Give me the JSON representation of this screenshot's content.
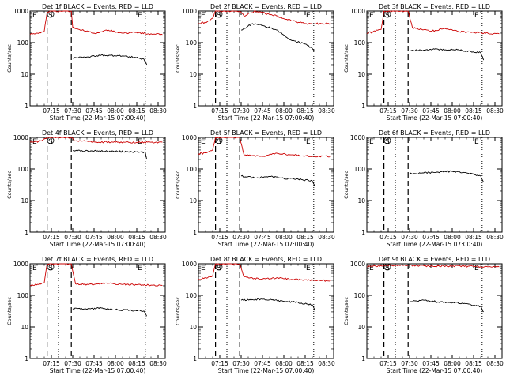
{
  "chart_data": [
    {
      "type": "line",
      "title": "Det 1f BLACK = Events, RED = LLD",
      "ylabel": "Counts/sec",
      "xlabel": "Start Time (22-Mar-15 07:00:40)",
      "xticks": [
        "07:15",
        "07:30",
        "07:45",
        "08:00",
        "08:15",
        "08:30"
      ],
      "yticks": [
        "1",
        "10",
        "100",
        "1000"
      ],
      "ylim": [
        1,
        1000
      ],
      "yscale": "log",
      "markers": [
        "E",
        "S",
        "E"
      ],
      "vlines_dashed": [
        "07:12",
        "07:29"
      ],
      "vlines_dotted": [
        "08:21"
      ],
      "series": [
        {
          "name": "RED = LLD",
          "color": "#cc0000",
          "x": [
            "07:00",
            "07:05",
            "07:10",
            "07:12",
            "07:14",
            "07:29",
            "07:30",
            "07:45",
            "07:55",
            "08:05",
            "08:15",
            "08:25",
            "08:33"
          ],
          "y": [
            180,
            200,
            230,
            900,
            1000,
            1000,
            300,
            200,
            250,
            200,
            210,
            190,
            180
          ]
        },
        {
          "name": "BLACK = Events",
          "color": "#000000",
          "x": [
            "07:30",
            "07:40",
            "07:50",
            "08:00",
            "08:10",
            "08:20",
            "08:22"
          ],
          "y": [
            32,
            35,
            40,
            38,
            36,
            30,
            20
          ]
        }
      ]
    },
    {
      "type": "line",
      "title": "Det 2f BLACK = Events, RED = LLD",
      "ylabel": "Counts/sec",
      "xlabel": "Start Time (22-Mar-15 07:00:40)",
      "xticks": [
        "07:15",
        "07:30",
        "07:45",
        "08:00",
        "08:15",
        "08:30"
      ],
      "yticks": [
        "1",
        "10",
        "100",
        "1000"
      ],
      "ylim": [
        1,
        1000
      ],
      "yscale": "log",
      "markers": [
        "E",
        "S",
        "E"
      ],
      "vlines_dashed": [
        "07:12",
        "07:29"
      ],
      "vlines_dotted": [
        "07:20",
        "08:21"
      ],
      "series": [
        {
          "name": "RED = LLD",
          "color": "#cc0000",
          "x": [
            "07:00",
            "07:06",
            "07:10",
            "07:12",
            "07:14",
            "07:29",
            "07:32",
            "07:40",
            "07:55",
            "08:05",
            "08:15",
            "08:25",
            "08:33"
          ],
          "y": [
            400,
            450,
            600,
            1000,
            1000,
            1000,
            700,
            1000,
            700,
            500,
            400,
            400,
            400
          ]
        },
        {
          "name": "BLACK = Events",
          "color": "#000000",
          "x": [
            "07:30",
            "07:38",
            "07:45",
            "07:55",
            "08:05",
            "08:15",
            "08:22"
          ],
          "y": [
            250,
            400,
            350,
            250,
            120,
            90,
            55
          ]
        }
      ]
    },
    {
      "type": "line",
      "title": "Det 3f BLACK = Events, RED = LLD",
      "ylabel": "Counts/sec",
      "xlabel": "Start Time (22-Mar-15 07:00:40)",
      "xticks": [
        "07:15",
        "07:30",
        "07:45",
        "08:00",
        "08:15",
        "08:30"
      ],
      "yticks": [
        "1",
        "10",
        "100",
        "1000"
      ],
      "ylim": [
        1,
        1000
      ],
      "yscale": "log",
      "markers": [
        "E",
        "S",
        "E"
      ],
      "vlines_dashed": [
        "07:12",
        "07:29"
      ],
      "vlines_dotted": [
        "07:20",
        "08:21"
      ],
      "series": [
        {
          "name": "RED = LLD",
          "color": "#cc0000",
          "x": [
            "07:00",
            "07:06",
            "07:10",
            "07:12",
            "07:14",
            "07:29",
            "07:32",
            "07:45",
            "07:55",
            "08:05",
            "08:15",
            "08:25",
            "08:33"
          ],
          "y": [
            200,
            230,
            260,
            1000,
            1000,
            1000,
            300,
            230,
            280,
            220,
            210,
            200,
            190
          ]
        },
        {
          "name": "BLACK = Events",
          "color": "#000000",
          "x": [
            "07:30",
            "07:40",
            "07:50",
            "08:00",
            "08:10",
            "08:20",
            "08:22"
          ],
          "y": [
            55,
            58,
            62,
            60,
            55,
            48,
            28
          ]
        }
      ]
    },
    {
      "type": "line",
      "title": "Det 4f BLACK = Events, RED = LLD",
      "ylabel": "Counts/sec",
      "xlabel": "Start Time (22-Mar-15 07:00:40)",
      "xticks": [
        "07:15",
        "07:30",
        "07:45",
        "08:00",
        "08:15",
        "08:30"
      ],
      "yticks": [
        "1",
        "10",
        "100",
        "1000"
      ],
      "ylim": [
        1,
        1000
      ],
      "yscale": "log",
      "markers": [
        "E",
        "S",
        "E"
      ],
      "vlines_dashed": [
        "07:12",
        "07:29"
      ],
      "vlines_dotted": [
        "08:21"
      ],
      "series": [
        {
          "name": "RED = LLD",
          "color": "#cc0000",
          "x": [
            "07:00",
            "07:06",
            "07:10",
            "07:12",
            "07:14",
            "07:29",
            "07:31",
            "07:45",
            "08:00",
            "08:15",
            "08:25",
            "08:33"
          ],
          "y": [
            700,
            750,
            900,
            1000,
            1000,
            1000,
            800,
            720,
            700,
            700,
            700,
            700
          ]
        },
        {
          "name": "BLACK = Events",
          "color": "#000000",
          "x": [
            "07:30",
            "07:45",
            "08:00",
            "08:15",
            "08:21",
            "08:22"
          ],
          "y": [
            380,
            370,
            360,
            350,
            340,
            200
          ]
        }
      ]
    },
    {
      "type": "line",
      "title": "Det 5f BLACK = Events, RED = LLD",
      "ylabel": "Counts/sec",
      "xlabel": "Start Time (22-Mar-15 07:00:40)",
      "xticks": [
        "07:15",
        "07:30",
        "07:45",
        "08:00",
        "08:15",
        "08:30"
      ],
      "yticks": [
        "1",
        "10",
        "100",
        "1000"
      ],
      "ylim": [
        1,
        1000
      ],
      "yscale": "log",
      "markers": [
        "E",
        "S",
        "E"
      ],
      "vlines_dashed": [
        "07:12",
        "07:29"
      ],
      "vlines_dotted": [
        "07:20",
        "08:21"
      ],
      "series": [
        {
          "name": "RED = LLD",
          "color": "#cc0000",
          "x": [
            "07:00",
            "07:06",
            "07:10",
            "07:12",
            "07:14",
            "07:29",
            "07:32",
            "07:45",
            "07:55",
            "08:05",
            "08:15",
            "08:25",
            "08:33"
          ],
          "y": [
            300,
            330,
            400,
            1000,
            1000,
            1000,
            280,
            250,
            320,
            280,
            260,
            250,
            250
          ]
        },
        {
          "name": "BLACK = Events",
          "color": "#000000",
          "x": [
            "07:30",
            "07:40",
            "07:50",
            "08:00",
            "08:10",
            "08:20",
            "08:22"
          ],
          "y": [
            60,
            52,
            58,
            50,
            48,
            42,
            28
          ]
        }
      ]
    },
    {
      "type": "line",
      "title": "Det 6f BLACK = Events, RED = LLD",
      "ylabel": "Counts/sec",
      "xlabel": "Start Time (22-Mar-15 07:00:40)",
      "xticks": [
        "07:15",
        "07:30",
        "07:45",
        "08:00",
        "08:15",
        "08:30"
      ],
      "yticks": [
        "1",
        "10",
        "100",
        "1000"
      ],
      "ylim": [
        1,
        1000
      ],
      "yscale": "log",
      "markers": [
        "E",
        "S",
        "E"
      ],
      "vlines_dashed": [
        "07:12",
        "07:29"
      ],
      "vlines_dotted": [
        "07:20",
        "08:21"
      ],
      "series": [
        {
          "name": "BLACK = Events",
          "color": "#000000",
          "x": [
            "07:30",
            "07:40",
            "07:50",
            "08:00",
            "08:10",
            "08:20",
            "08:22"
          ],
          "y": [
            70,
            75,
            80,
            85,
            75,
            60,
            38
          ]
        }
      ]
    },
    {
      "type": "line",
      "title": "Det 7f BLACK = Events, RED = LLD",
      "ylabel": "Counts/sec",
      "xlabel": "Start Time (22-Mar-15 07:00:40)",
      "xticks": [
        "07:15",
        "07:30",
        "07:45",
        "08:00",
        "08:15",
        "08:30"
      ],
      "yticks": [
        "1",
        "10",
        "100",
        "1000"
      ],
      "ylim": [
        1,
        1000
      ],
      "yscale": "log",
      "markers": [
        "E",
        "S",
        "E"
      ],
      "vlines_dashed": [
        "07:12",
        "07:29"
      ],
      "vlines_dotted": [
        "07:20",
        "08:21"
      ],
      "series": [
        {
          "name": "RED = LLD",
          "color": "#cc0000",
          "x": [
            "07:00",
            "07:06",
            "07:10",
            "07:12",
            "07:14",
            "07:29",
            "07:32",
            "07:45",
            "07:55",
            "08:05",
            "08:15",
            "08:25",
            "08:33"
          ],
          "y": [
            200,
            220,
            250,
            1000,
            1000,
            1000,
            230,
            220,
            240,
            220,
            215,
            210,
            205
          ]
        },
        {
          "name": "BLACK = Events",
          "color": "#000000",
          "x": [
            "07:30",
            "07:40",
            "07:50",
            "08:00",
            "08:10",
            "08:20",
            "08:22"
          ],
          "y": [
            38,
            36,
            40,
            35,
            34,
            32,
            22
          ]
        }
      ]
    },
    {
      "type": "line",
      "title": "Det 8f BLACK = Events, RED = LLD",
      "ylabel": "Counts/sec",
      "xlabel": "Start Time (22-Mar-15 07:00:40)",
      "xticks": [
        "07:15",
        "07:30",
        "07:45",
        "08:00",
        "08:15",
        "08:30"
      ],
      "yticks": [
        "1",
        "10",
        "100",
        "1000"
      ],
      "ylim": [
        1,
        1000
      ],
      "yscale": "log",
      "markers": [
        "E",
        "S",
        "E"
      ],
      "vlines_dashed": [
        "07:12",
        "07:29"
      ],
      "vlines_dotted": [
        "07:20",
        "08:21"
      ],
      "series": [
        {
          "name": "RED = LLD",
          "color": "#cc0000",
          "x": [
            "07:00",
            "07:06",
            "07:10",
            "07:12",
            "07:14",
            "07:29",
            "07:32",
            "07:45",
            "07:55",
            "08:05",
            "08:15",
            "08:25",
            "08:33"
          ],
          "y": [
            320,
            350,
            420,
            1000,
            1000,
            1000,
            380,
            330,
            360,
            320,
            310,
            300,
            290
          ]
        },
        {
          "name": "BLACK = Events",
          "color": "#000000",
          "x": [
            "07:30",
            "07:40",
            "07:50",
            "08:00",
            "08:10",
            "08:20",
            "08:22"
          ],
          "y": [
            70,
            75,
            72,
            65,
            60,
            50,
            32
          ]
        }
      ]
    },
    {
      "type": "line",
      "title": "Det 9f BLACK = Events, RED = LLD",
      "ylabel": "Counts/sec",
      "xlabel": "Start Time (22-Mar-15 07:00:40)",
      "xticks": [
        "07:15",
        "07:30",
        "07:45",
        "08:00",
        "08:15",
        "08:30"
      ],
      "yticks": [
        "1",
        "10",
        "100",
        "1000"
      ],
      "ylim": [
        1,
        1000
      ],
      "yscale": "log",
      "markers": [
        "E",
        "S",
        "E"
      ],
      "vlines_dashed": [
        "07:12",
        "07:29"
      ],
      "vlines_dotted": [
        "07:20",
        "08:21"
      ],
      "series": [
        {
          "name": "RED = LLD",
          "color": "#cc0000",
          "x": [
            "07:00",
            "07:06",
            "07:12",
            "07:29",
            "07:45",
            "08:00",
            "08:15",
            "08:25",
            "08:33"
          ],
          "y": [
            800,
            850,
            900,
            900,
            850,
            850,
            830,
            800,
            800
          ]
        },
        {
          "name": "BLACK = Events",
          "color": "#000000",
          "x": [
            "07:30",
            "07:40",
            "07:50",
            "08:00",
            "08:10",
            "08:20",
            "08:22"
          ],
          "y": [
            65,
            70,
            62,
            58,
            55,
            45,
            30
          ]
        }
      ]
    }
  ]
}
